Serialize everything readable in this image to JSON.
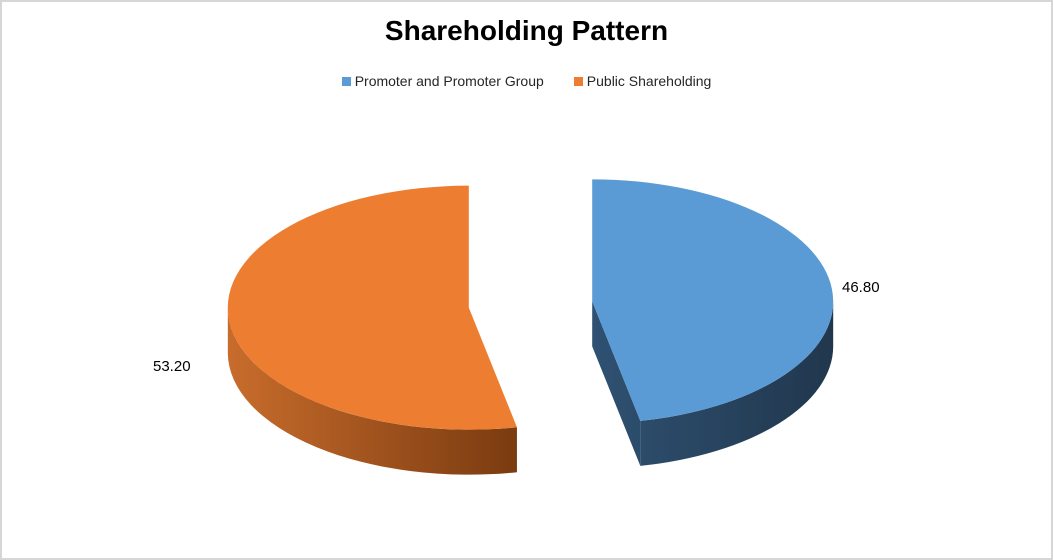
{
  "page": {
    "background_color": "#FFFFFF",
    "border_color": "#D6D6D6"
  },
  "chart_data": {
    "type": "pie",
    "title": "Shareholding Pattern",
    "effect": "3d-exploded",
    "legend_position": "top",
    "start_angle_deg": 0,
    "rotation": "clockwise",
    "series": [
      {
        "label": "Promoter and Promoter Group",
        "value": 46.8,
        "display_value": "46.80",
        "top_color": "#5B9BD5",
        "side_color_start": "#2F5172",
        "side_color_end": "#21374D"
      },
      {
        "label": "Public Shareholding",
        "value": 53.2,
        "display_value": "53.20",
        "top_color": "#ED7D31",
        "side_color_start": "#C86C2C",
        "side_color_end": "#7A3B10"
      }
    ]
  }
}
